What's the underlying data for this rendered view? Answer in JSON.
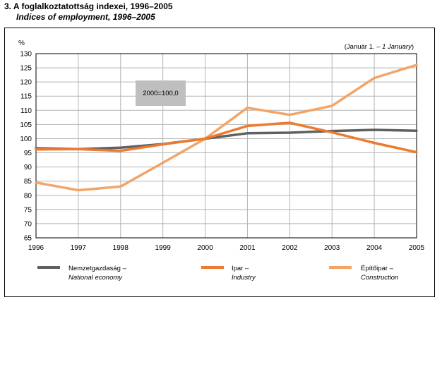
{
  "title": "3. A foglalkoztatottság indexei, 1996–2005",
  "subtitle": "Indices of employment, 1996–2005",
  "note": "(Január 1. – 1 January)",
  "note_parts": {
    "hu": "(Január 1. – ",
    "en": "1 January",
    "end": ")"
  },
  "ylabel": "%",
  "base_label": "2000=100,0",
  "colors": {
    "national": "#606060",
    "industry": "#ec7a2f",
    "construction": "#f3a468",
    "grid": "#b4b4b4",
    "baselabel_bg": "#bfbfbf"
  },
  "chart_data": {
    "type": "line",
    "x": [
      1996,
      1997,
      1998,
      1999,
      2000,
      2001,
      2002,
      2003,
      2004,
      2005
    ],
    "ylim": [
      65,
      130
    ],
    "yticks": [
      65,
      70,
      75,
      80,
      85,
      90,
      95,
      100,
      105,
      110,
      115,
      120,
      125,
      130
    ],
    "grid": true,
    "legend_position": "bottom",
    "series": [
      {
        "name": "Nemzetgazdaság – National economy",
        "name_hu": "Nemzetgazdaság –",
        "name_en": "National economy",
        "color": "#606060",
        "values": [
          96.6,
          96.3,
          96.8,
          98.1,
          100.0,
          101.9,
          102.1,
          102.7,
          103.1,
          102.8
        ]
      },
      {
        "name": "Ipar – Industry",
        "name_hu": "Ipar –",
        "name_en": "Industry",
        "color": "#ec7a2f",
        "values": [
          96.2,
          96.3,
          95.7,
          98.0,
          100.0,
          104.5,
          105.6,
          102.2,
          98.5,
          95.2
        ]
      },
      {
        "name": "Építőipar – Construction",
        "name_hu": "Építőipar –",
        "name_en": "Construction",
        "color": "#f3a468",
        "values": [
          84.5,
          81.8,
          83.1,
          91.5,
          100.0,
          110.9,
          108.4,
          111.6,
          121.4,
          126.0
        ]
      }
    ]
  }
}
